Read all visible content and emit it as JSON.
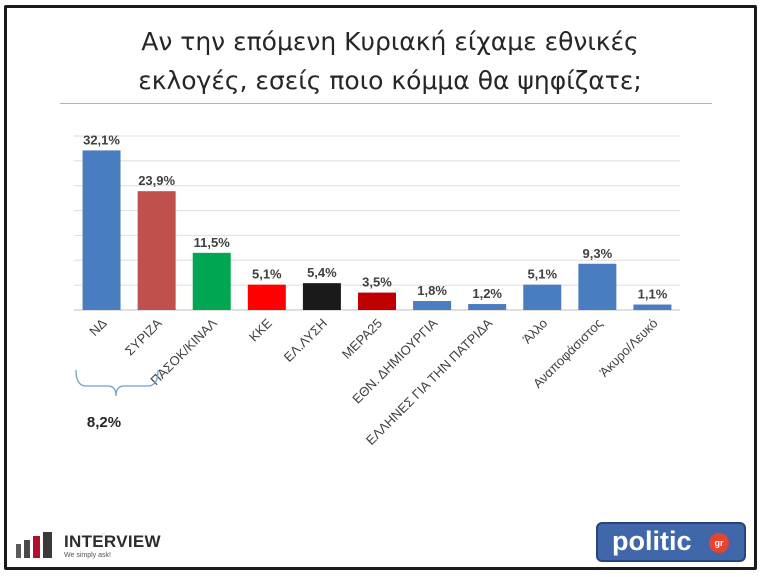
{
  "title_line1": "Αν την επόμενη Κυριακή είχαμε εθνικές",
  "title_line2": "εκλογές, εσείς ποιο κόμμα θα ψηφίζατε;",
  "chart_data": {
    "type": "bar",
    "categories": [
      "ΝΔ",
      "ΣΥΡΙΖΑ",
      "ΠΑΣΟΚ/ΚΙΝΑΛ",
      "ΚΚΕ",
      "ΕΛ.ΛΥΣΗ",
      "ΜΕΡΑ25",
      "ΕΘΝ. ΔΗΜΙΟΥΡΓΙΑ",
      "ΕΛΛΗΝΕΣ ΓΙΑ ΤΗΝ ΠΑΤΡΙΔΑ",
      "Άλλο",
      "Αναποφάσιστος",
      "Άκυρο/Λευκό"
    ],
    "values": [
      32.1,
      23.9,
      11.5,
      5.1,
      5.4,
      3.5,
      1.8,
      1.2,
      5.1,
      9.3,
      1.1
    ],
    "value_labels": [
      "32,1%",
      "23,9%",
      "11,5%",
      "5,1%",
      "5,4%",
      "3,5%",
      "1,8%",
      "1,2%",
      "5,1%",
      "9,3%",
      "1,1%"
    ],
    "colors": [
      "#4a7cc0",
      "#c0504d",
      "#00a651",
      "#ff0000",
      "#1a1a1a",
      "#c00000",
      "#4a7cc0",
      "#4a7cc0",
      "#4a7cc0",
      "#4a7cc0",
      "#4a7cc0"
    ],
    "ylim": [
      0,
      35
    ],
    "grid": true,
    "legend": "none",
    "bracket_label": "8,2%"
  },
  "logos": {
    "left_brand": "INTERVIEW",
    "left_slogan": "We simply ask!",
    "right_brand": "politic",
    "right_badge": "gr"
  }
}
